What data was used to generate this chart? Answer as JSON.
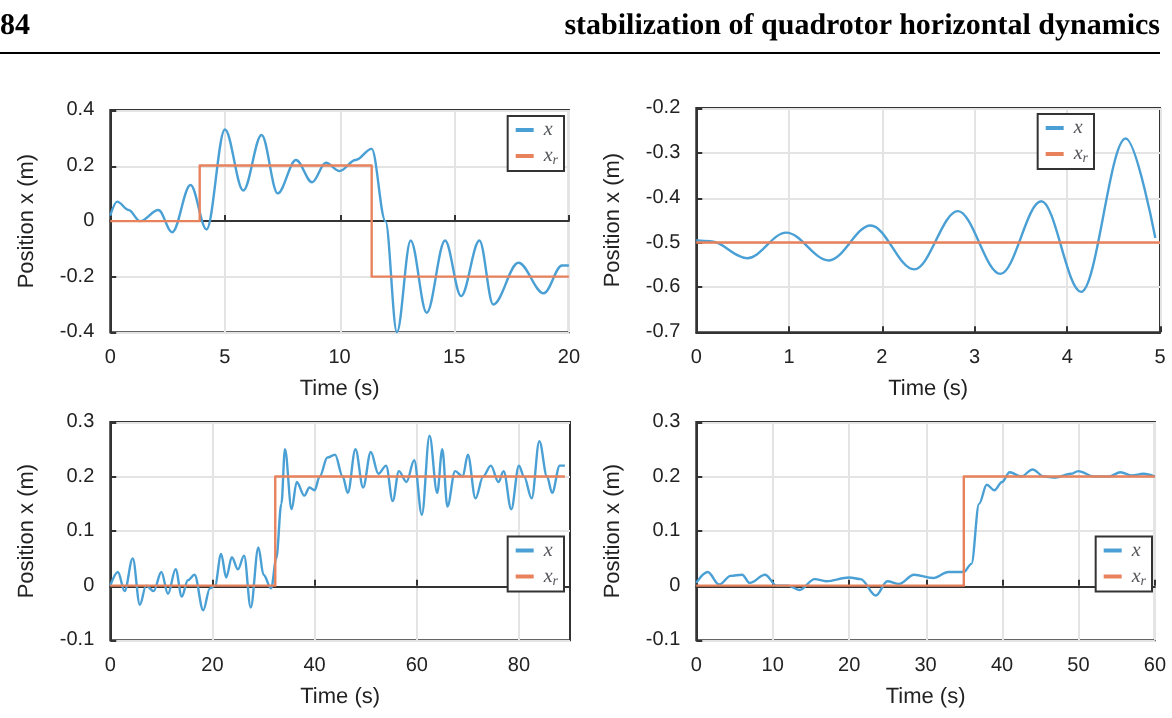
{
  "chart_data": [
    {
      "type": "line",
      "annotations": [
        "84",
        "stabilization of quadrotor horizontal dynamics"
      ],
      "xlabel": "Time (s)",
      "ylabel": "Position x (m)",
      "xlim": [
        0,
        20
      ],
      "xticks": [
        0,
        5,
        10,
        15,
        20
      ],
      "ylim": [
        -0.4,
        0.4
      ],
      "yticks": [
        -0.4,
        -0.2,
        0,
        0.2,
        0.4
      ],
      "grid": true,
      "legend": "top right",
      "series": [
        {
          "name": "x",
          "color": "#4aa0d4",
          "x": [
            0,
            0.3,
            0.8,
            1.3,
            2.1,
            2.7,
            3.5,
            4.2,
            5.0,
            5.8,
            6.6,
            7.3,
            8.1,
            8.8,
            9.4,
            10.0,
            10.7,
            11.4,
            12.0,
            12.5,
            13.1,
            13.8,
            14.6,
            15.3,
            16.1,
            16.7,
            17.8,
            18.9,
            19.7,
            20
          ],
          "values": [
            0.02,
            0.07,
            0.04,
            0.0,
            0.04,
            -0.04,
            0.13,
            -0.03,
            0.33,
            0.11,
            0.31,
            0.1,
            0.22,
            0.14,
            0.21,
            0.18,
            0.22,
            0.26,
            0.0,
            -0.4,
            -0.07,
            -0.33,
            -0.07,
            -0.27,
            -0.07,
            -0.3,
            -0.15,
            -0.26,
            -0.16,
            -0.16
          ]
        },
        {
          "name": "x$_{r}$",
          "color": "#e8825c",
          "x": [
            0,
            3.9,
            3.9,
            11.4,
            11.4,
            20
          ],
          "values": [
            0,
            0,
            0.2,
            0.2,
            -0.2,
            -0.2
          ]
        }
      ]
    },
    {
      "type": "line",
      "xlabel": "Time (s)",
      "ylabel": "Position x (m)",
      "xlim": [
        0,
        5
      ],
      "xticks": [
        0,
        1,
        2,
        3,
        4,
        5
      ],
      "ylim": [
        -0.7,
        -0.2
      ],
      "yticks": [
        -0.7,
        -0.6,
        -0.5,
        -0.4,
        -0.3,
        -0.2
      ],
      "grid": true,
      "legend": "top right",
      "series": [
        {
          "name": "x",
          "color": "#4aa0d4",
          "x": [
            0,
            0.15,
            0.55,
            0.97,
            1.43,
            1.88,
            2.35,
            2.82,
            3.28,
            3.72,
            4.15,
            4.63,
            4.95
          ],
          "values": [
            -0.495,
            -0.497,
            -0.535,
            -0.478,
            -0.54,
            -0.462,
            -0.56,
            -0.43,
            -0.57,
            -0.408,
            -0.61,
            -0.268,
            -0.49
          ]
        },
        {
          "name": "x$_{r}$",
          "color": "#e8825c",
          "x": [
            0,
            5
          ],
          "values": [
            -0.5,
            -0.5
          ]
        }
      ]
    },
    {
      "type": "line",
      "xlabel": "Time (s)",
      "ylabel": "Position x (m)",
      "xlim": [
        0,
        90
      ],
      "xticks": [
        0,
        20,
        40,
        60,
        80
      ],
      "ylim": [
        -0.1,
        0.3
      ],
      "yticks": [
        -0.1,
        0,
        0.1,
        0.2,
        0.3
      ],
      "grid": true,
      "legend": "right",
      "series": [
        {
          "name": "x",
          "color": "#4aa0d4",
          "x": [
            0,
            1.5,
            2.8,
            4.4,
            5.8,
            7,
            8.5,
            10,
            11.3,
            12.8,
            14,
            15.2,
            16.5,
            18.2,
            19.5,
            20.5,
            21.7,
            22.7,
            23.8,
            25,
            26.2,
            27.5,
            29,
            30,
            31.5,
            32.5,
            33.5,
            34.2,
            35.5,
            36.5,
            38,
            39,
            40,
            41,
            42.5,
            44,
            45.5,
            46.5,
            48,
            49.5,
            51,
            52.5,
            54,
            55.3,
            56.5,
            58,
            59.5,
            61,
            62.5,
            64,
            65,
            66,
            67.5,
            69,
            70,
            71.5,
            73,
            74.5,
            76,
            77,
            78.5,
            80,
            81,
            82.5,
            84,
            85.5,
            86.5,
            88,
            89
          ],
          "values": [
            0.0,
            0.025,
            -0.01,
            0.05,
            -0.035,
            0.0,
            -0.01,
            0.025,
            -0.015,
            0.03,
            -0.02,
            0.01,
            0.02,
            -0.045,
            -0.005,
            0.0,
            0.058,
            0.015,
            0.052,
            0.03,
            0.055,
            -0.04,
            0.07,
            0.02,
            -0.005,
            0.05,
            0.15,
            0.25,
            0.14,
            0.19,
            0.165,
            0.18,
            0.175,
            0.2,
            0.235,
            0.24,
            0.2,
            0.17,
            0.25,
            0.18,
            0.245,
            0.205,
            0.22,
            0.155,
            0.21,
            0.19,
            0.23,
            0.13,
            0.275,
            0.17,
            0.25,
            0.145,
            0.21,
            0.2,
            0.24,
            0.16,
            0.2,
            0.22,
            0.19,
            0.21,
            0.14,
            0.22,
            0.2,
            0.16,
            0.265,
            0.2,
            0.17,
            0.22,
            0.22
          ]
        },
        {
          "name": "x$_{r}$",
          "color": "#e8825c",
          "x": [
            0,
            32.3,
            32.3,
            89
          ],
          "values": [
            0,
            0,
            0.2,
            0.2
          ]
        }
      ]
    },
    {
      "type": "line",
      "xlabel": "Time (s)",
      "ylabel": "Position x (m)",
      "xlim": [
        0,
        60
      ],
      "xticks": [
        0,
        10,
        20,
        30,
        40,
        50,
        60
      ],
      "ylim": [
        -0.1,
        0.3
      ],
      "yticks": [
        -0.1,
        0,
        0.1,
        0.2,
        0.3
      ],
      "grid": true,
      "legend": "right",
      "series": [
        {
          "name": "x",
          "color": "#4aa0d4",
          "x": [
            0,
            1.5,
            3,
            4.5,
            6,
            7,
            9,
            10.5,
            12,
            13.5,
            15.5,
            17,
            20,
            21.5,
            23.5,
            25,
            26.5,
            28.5,
            31,
            33,
            35,
            36,
            37,
            38,
            39,
            40,
            41,
            42.5,
            44,
            45.5,
            47,
            49,
            50,
            52,
            54,
            55.5,
            57,
            58.5,
            60
          ],
          "values": [
            0.005,
            0.025,
            0.002,
            0.018,
            0.02,
            0.005,
            0.02,
            0.0,
            0.0,
            -0.008,
            0.012,
            0.008,
            0.015,
            0.012,
            -0.018,
            0.008,
            0.003,
            0.02,
            0.014,
            0.025,
            0.025,
            0.04,
            0.15,
            0.185,
            0.175,
            0.19,
            0.208,
            0.2,
            0.213,
            0.2,
            0.198,
            0.205,
            0.21,
            0.2,
            0.2,
            0.208,
            0.202,
            0.205,
            0.2
          ]
        },
        {
          "name": "x$_{r}$",
          "color": "#e8825c",
          "x": [
            0,
            35,
            35,
            60
          ],
          "values": [
            0,
            0,
            0.2,
            0.2
          ]
        }
      ]
    }
  ]
}
